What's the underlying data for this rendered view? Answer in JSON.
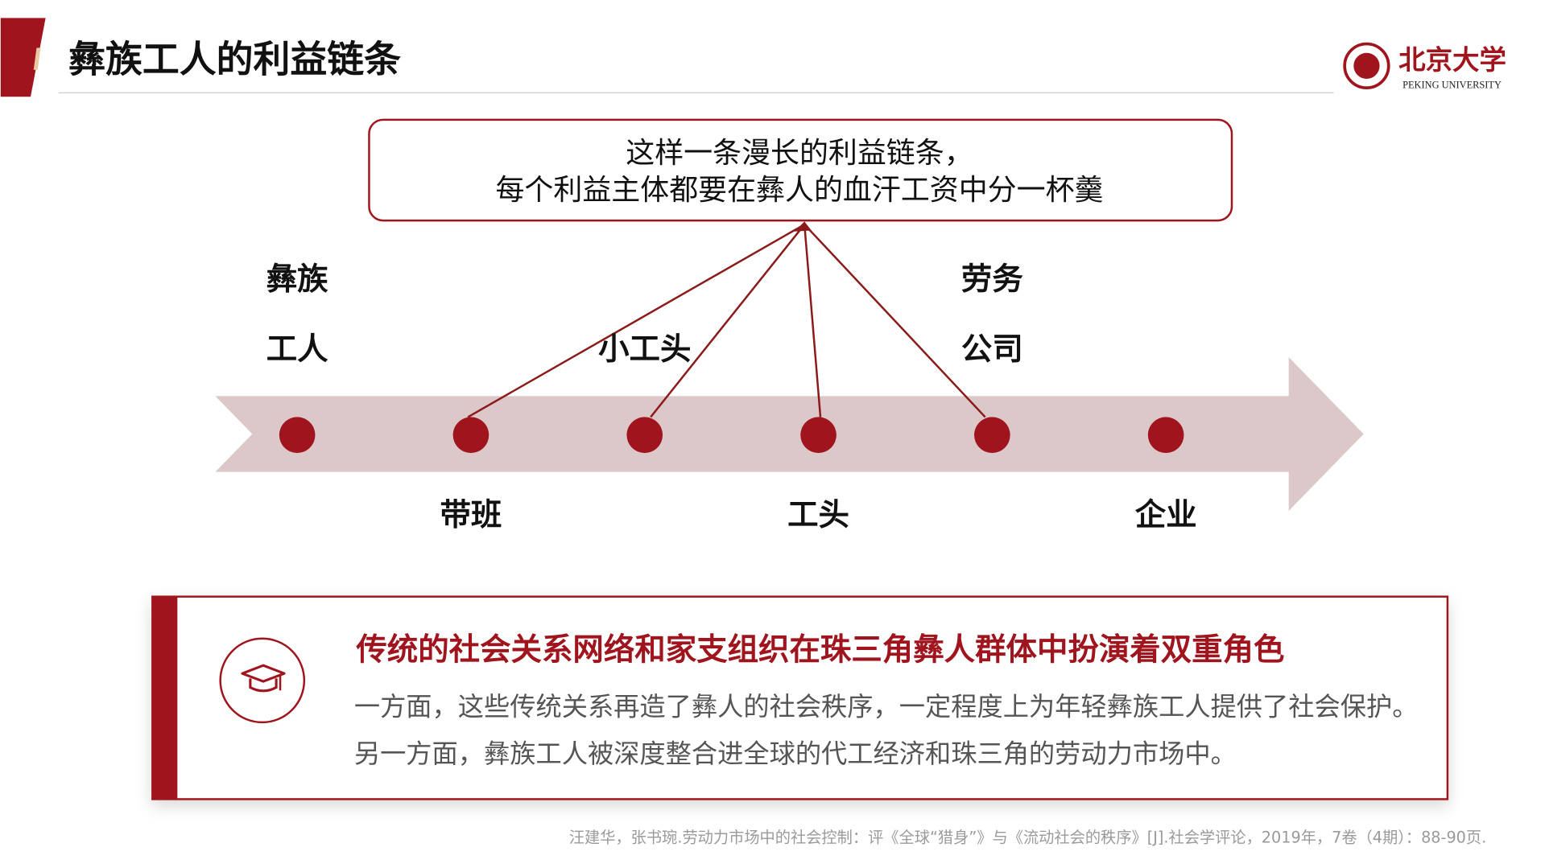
{
  "header": {
    "title": "彝族工人的利益链条"
  },
  "logo": {
    "chinese": "北京大学",
    "english": "PEKING UNIVERSITY"
  },
  "callout": {
    "lines": [
      "这样一条漫长的利益链条，",
      "每个利益主体都要在彝人的血汗工资中分一杯羹"
    ]
  },
  "chain": {
    "nodes": [
      {
        "lines": [
          "彝族",
          "工人"
        ]
      },
      {
        "lines": [
          "带班"
        ]
      },
      {
        "lines": [
          "小工头"
        ]
      },
      {
        "lines": [
          "工头"
        ]
      },
      {
        "lines": [
          "劳务",
          "公司"
        ]
      },
      {
        "lines": [
          "企业"
        ]
      }
    ]
  },
  "note": {
    "heading": "传统的社会关系网络和家支组织在珠三角彝人群体中扮演着双重角色",
    "paragraphs": [
      "一方面，这些传统关系再造了彝人的社会秩序，一定程度上为年轻彝族工人提供了社会保护。",
      "另一方面，彝族工人被深度整合进全球的代工经济和珠三角的劳动力市场中。"
    ]
  },
  "citation": "汪建华，张书琬.劳动力市场中的社会控制：评《全球“猎身”》与《流动社会的秩序》[J].社会学评论，2019年，7卷（4期）：88-90页."
}
